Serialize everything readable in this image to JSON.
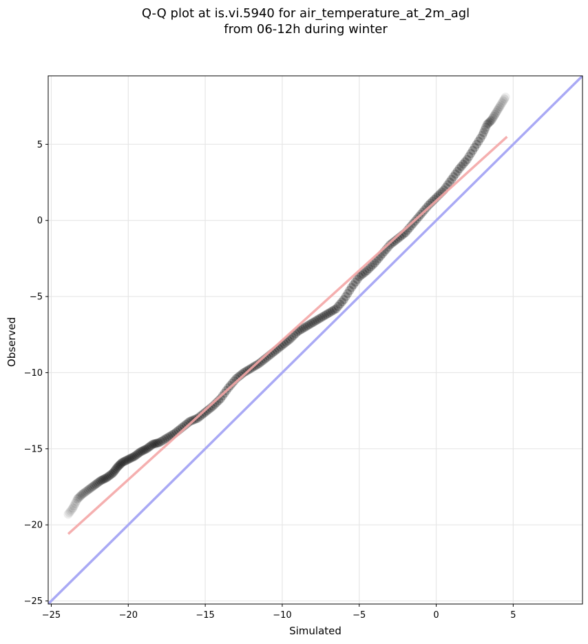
{
  "chart_data": {
    "type": "scatter",
    "title_lines": [
      "Q-Q plot at is.vi.5940 for air_temperature_at_2m_agl",
      "from 06-12h during winter"
    ],
    "xlabel": "Simulated",
    "ylabel": "Observed",
    "xlim": [
      -25.2,
      9.5
    ],
    "ylim": [
      -25.2,
      9.5
    ],
    "xticks": [
      -25,
      -20,
      -15,
      -10,
      -5,
      0,
      5
    ],
    "yticks": [
      -25,
      -20,
      -15,
      -10,
      -5,
      0,
      5
    ],
    "xtick_labels": [
      "−25",
      "−20",
      "−15",
      "−10",
      "−5",
      "0",
      "5"
    ],
    "ytick_labels": [
      "−25",
      "−20",
      "−15",
      "−10",
      "−5",
      "0",
      "5"
    ],
    "grid": true,
    "quantiles": {
      "simulated": [
        -23.9,
        -23.6,
        -23.3,
        -23.0,
        -22.6,
        -22.2,
        -21.8,
        -21.4,
        -21.0,
        -20.7,
        -20.4,
        -20.0,
        -19.6,
        -19.2,
        -18.8,
        -18.4,
        -18.0,
        -17.5,
        -17.0,
        -16.5,
        -16.0,
        -15.5,
        -15.0,
        -14.5,
        -14.0,
        -13.5,
        -13.0,
        -12.5,
        -12.0,
        -11.5,
        -11.0,
        -10.5,
        -10.0,
        -9.5,
        -9.0,
        -8.5,
        -8.0,
        -7.5,
        -7.0,
        -6.5,
        -6.0,
        -5.5,
        -5.0,
        -4.5,
        -4.0,
        -3.5,
        -3.0,
        -2.5,
        -2.0,
        -1.5,
        -1.0,
        -0.5,
        0.0,
        0.5,
        1.0,
        1.5,
        2.0,
        2.5,
        3.0,
        3.3,
        3.6,
        3.9,
        4.2,
        4.5
      ],
      "observed": [
        -19.3,
        -18.9,
        -18.3,
        -18.0,
        -17.7,
        -17.4,
        -17.1,
        -16.9,
        -16.6,
        -16.2,
        -15.9,
        -15.7,
        -15.5,
        -15.2,
        -15.0,
        -14.7,
        -14.6,
        -14.3,
        -14.0,
        -13.6,
        -13.2,
        -13.0,
        -12.6,
        -12.2,
        -11.7,
        -11.0,
        -10.4,
        -10.0,
        -9.7,
        -9.4,
        -9.0,
        -8.6,
        -8.2,
        -7.8,
        -7.3,
        -7.0,
        -6.7,
        -6.4,
        -6.1,
        -5.8,
        -5.2,
        -4.4,
        -3.7,
        -3.3,
        -2.8,
        -2.2,
        -1.6,
        -1.2,
        -0.8,
        -0.2,
        0.4,
        1.0,
        1.5,
        2.0,
        2.7,
        3.4,
        4.0,
        4.8,
        5.6,
        6.3,
        6.6,
        7.1,
        7.6,
        8.1
      ]
    },
    "fit_line": {
      "color": "#f4a6a6",
      "x": [
        -23.9,
        4.6
      ],
      "y": [
        -20.6,
        5.5
      ]
    },
    "identity_line": {
      "color": "#a9a9f5"
    },
    "marker_color": "#000000"
  }
}
